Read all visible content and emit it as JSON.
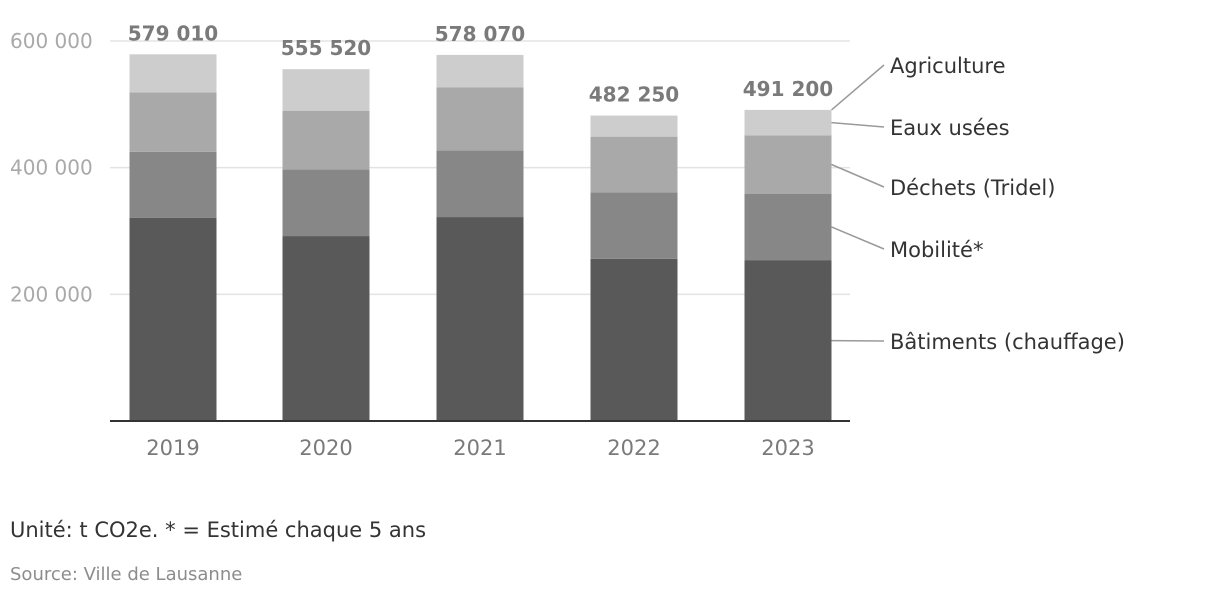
{
  "chart_data": {
    "type": "bar",
    "stacked": true,
    "categories": [
      "2019",
      "2020",
      "2021",
      "2022",
      "2023"
    ],
    "series": [
      {
        "name": "Bâtiments (chauffage)",
        "color": "#595959",
        "values": [
          321000,
          292000,
          322000,
          256000,
          254000
        ]
      },
      {
        "name": "Mobilité*",
        "color": "#878787",
        "values": [
          104000,
          105000,
          105000,
          105000,
          105000
        ]
      },
      {
        "name": "Déchets (Tridel)",
        "color": "#a9a9a9",
        "values": [
          94000,
          93000,
          100000,
          88000,
          92000
        ]
      },
      {
        "name": "Eaux usées",
        "color": "#cdcdcd",
        "values": [
          60010,
          65520,
          51070,
          33250,
          40200
        ]
      },
      {
        "name": "Agriculture",
        "color": "#e6e6e6",
        "values": [
          0,
          0,
          0,
          0,
          0
        ]
      }
    ],
    "totals": [
      "579 010",
      "555 520",
      "578 070",
      "482 250",
      "491 200"
    ],
    "y_ticks": [
      200000,
      400000,
      600000
    ],
    "y_tick_labels": [
      "200 000",
      "400 000",
      "600 000"
    ],
    "ylim": [
      0,
      600000
    ],
    "grid": true,
    "legend_placement": "right"
  },
  "footnote": "Unité: t CO2e. * = Estimé chaque 5 ans",
  "source": "Source: Ville de Lausanne"
}
